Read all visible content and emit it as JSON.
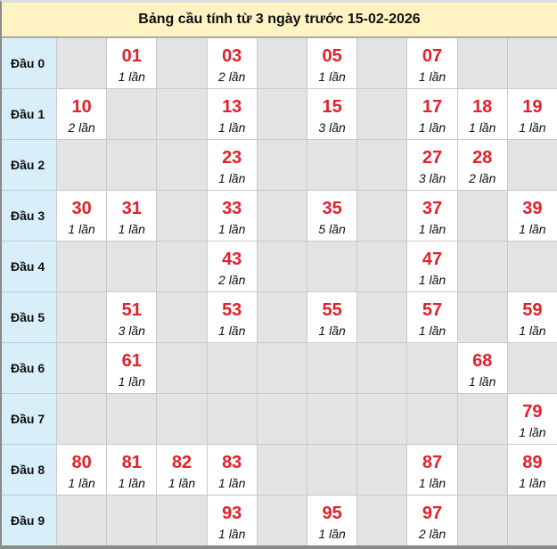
{
  "title": "Bảng cầu tính từ 3 ngày trước 15-02-2026",
  "colors": {
    "number": "#e3202b",
    "label_bg": "#d8eef8",
    "title_bg": "#fef3c3",
    "empty_bg": "#e2e3e5"
  },
  "rows": [
    {
      "label": "Đầu 0",
      "cells": [
        null,
        {
          "number": "01",
          "count": "1 lần"
        },
        null,
        {
          "number": "03",
          "count": "2 lần"
        },
        null,
        {
          "number": "05",
          "count": "1 lần"
        },
        null,
        {
          "number": "07",
          "count": "1 lần"
        },
        null,
        null
      ]
    },
    {
      "label": "Đầu 1",
      "cells": [
        {
          "number": "10",
          "count": "2 lần"
        },
        null,
        null,
        {
          "number": "13",
          "count": "1 lần"
        },
        null,
        {
          "number": "15",
          "count": "3 lần"
        },
        null,
        {
          "number": "17",
          "count": "1 lần"
        },
        {
          "number": "18",
          "count": "1 lần"
        },
        {
          "number": "19",
          "count": "1 lần"
        }
      ]
    },
    {
      "label": "Đầu 2",
      "cells": [
        null,
        null,
        null,
        {
          "number": "23",
          "count": "1 lần"
        },
        null,
        null,
        null,
        {
          "number": "27",
          "count": "3 lần"
        },
        {
          "number": "28",
          "count": "2 lần"
        },
        null
      ]
    },
    {
      "label": "Đầu 3",
      "cells": [
        {
          "number": "30",
          "count": "1 lần"
        },
        {
          "number": "31",
          "count": "1 lần"
        },
        null,
        {
          "number": "33",
          "count": "1 lần"
        },
        null,
        {
          "number": "35",
          "count": "5 lần"
        },
        null,
        {
          "number": "37",
          "count": "1 lần"
        },
        null,
        {
          "number": "39",
          "count": "1 lần"
        }
      ]
    },
    {
      "label": "Đầu 4",
      "cells": [
        null,
        null,
        null,
        {
          "number": "43",
          "count": "2 lần"
        },
        null,
        null,
        null,
        {
          "number": "47",
          "count": "1 lần"
        },
        null,
        null
      ]
    },
    {
      "label": "Đầu 5",
      "cells": [
        null,
        {
          "number": "51",
          "count": "3 lần"
        },
        null,
        {
          "number": "53",
          "count": "1 lần"
        },
        null,
        {
          "number": "55",
          "count": "1 lần"
        },
        null,
        {
          "number": "57",
          "count": "1 lần"
        },
        null,
        {
          "number": "59",
          "count": "1 lần"
        }
      ]
    },
    {
      "label": "Đầu 6",
      "cells": [
        null,
        {
          "number": "61",
          "count": "1 lần"
        },
        null,
        null,
        null,
        null,
        null,
        null,
        {
          "number": "68",
          "count": "1 lần"
        },
        null
      ]
    },
    {
      "label": "Đầu 7",
      "cells": [
        null,
        null,
        null,
        null,
        null,
        null,
        null,
        null,
        null,
        {
          "number": "79",
          "count": "1 lần"
        }
      ]
    },
    {
      "label": "Đầu 8",
      "cells": [
        {
          "number": "80",
          "count": "1 lần"
        },
        {
          "number": "81",
          "count": "1 lần"
        },
        {
          "number": "82",
          "count": "1 lần"
        },
        {
          "number": "83",
          "count": "1 lần"
        },
        null,
        null,
        null,
        {
          "number": "87",
          "count": "1 lần"
        },
        null,
        {
          "number": "89",
          "count": "1 lần"
        }
      ]
    },
    {
      "label": "Đầu 9",
      "cells": [
        null,
        null,
        null,
        {
          "number": "93",
          "count": "1 lần"
        },
        null,
        {
          "number": "95",
          "count": "1 lần"
        },
        null,
        {
          "number": "97",
          "count": "2 lần"
        },
        null,
        null
      ]
    }
  ]
}
